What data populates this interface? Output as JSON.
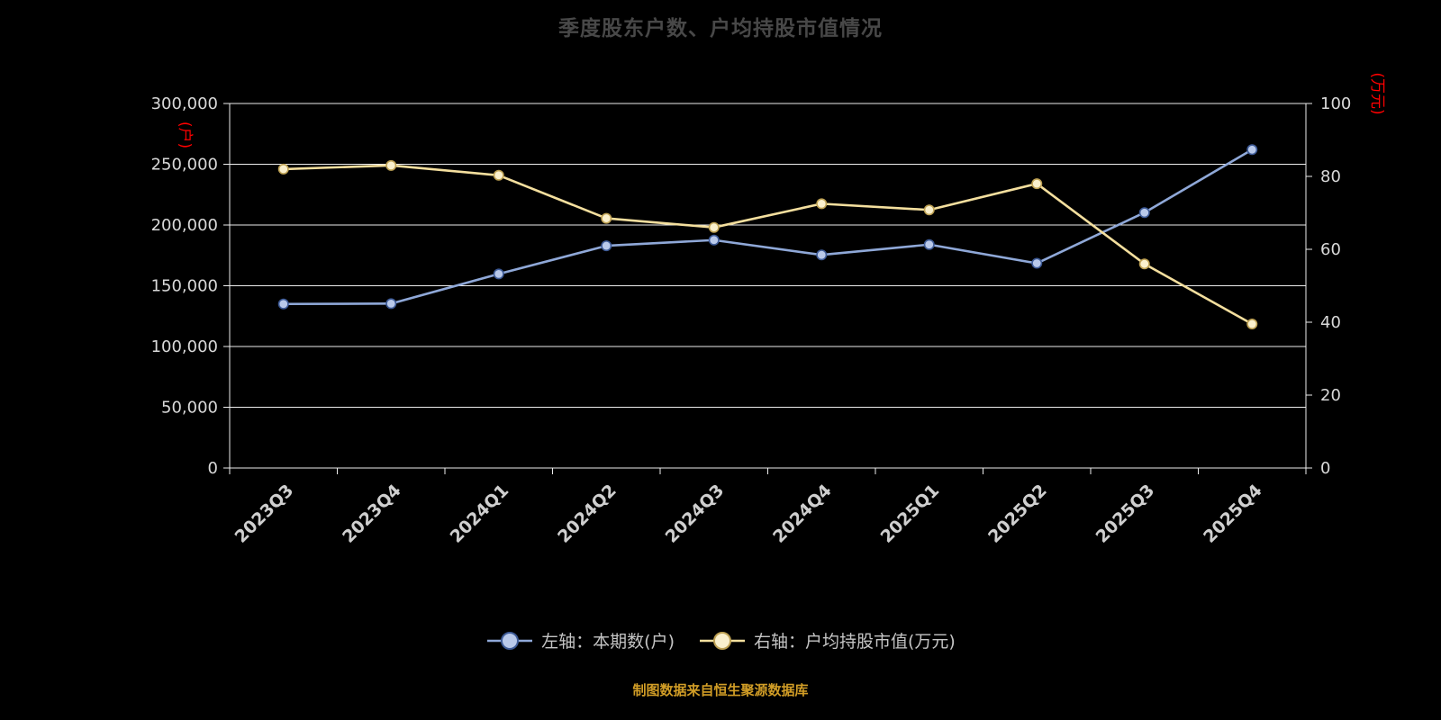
{
  "title": "季度股东户数、户均持股市值情况",
  "footer": "制图数据来自恒生聚源数据库",
  "left_axis": {
    "label": "(户)",
    "min": 0,
    "max": 300000,
    "step": 50000,
    "label_color": "#ff0000",
    "tick_color": "#d9d9d9"
  },
  "right_axis": {
    "label": "(万元)",
    "min": 0,
    "max": 100,
    "step": 20,
    "label_color": "#ff0000",
    "tick_color": "#d9d9d9"
  },
  "legend": [
    {
      "label": "左轴：本期数(户)"
    },
    {
      "label": "右轴：户均持股市值(万元)"
    }
  ],
  "chart_data": {
    "type": "line",
    "title": "季度股东户数、户均持股市值情况",
    "categories": [
      "2023Q3",
      "2023Q4",
      "2024Q1",
      "2024Q2",
      "2024Q3",
      "2024Q4",
      "2025Q1",
      "2025Q2",
      "2025Q3",
      "2025Q4"
    ],
    "series": [
      {
        "name": "左轴：本期数(户)",
        "axis": "left",
        "color": "#8fa8d8",
        "marker_fill": "#b9c9ea",
        "marker_stroke": "#3d5a96",
        "values": [
          135000,
          135300,
          159700,
          182900,
          187600,
          175400,
          183900,
          168500,
          210200,
          262000
        ]
      },
      {
        "name": "右轴：户均持股市值(万元)",
        "axis": "right",
        "color": "#f4df9e",
        "marker_fill": "#faf0cd",
        "marker_stroke": "#bfa254",
        "values": [
          82.0,
          83.0,
          80.3,
          68.5,
          66.0,
          72.5,
          70.8,
          78.0,
          56.0,
          39.5
        ]
      }
    ],
    "left_ylim": [
      0,
      300000
    ],
    "right_ylim": [
      0,
      100
    ],
    "grid": true,
    "legend_position": "bottom"
  }
}
